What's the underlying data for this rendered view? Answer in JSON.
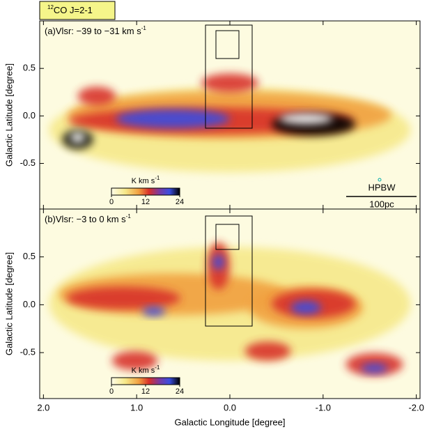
{
  "figure_label": {
    "superscript": "12",
    "text": "CO J=2-1"
  },
  "chart_data": [
    {
      "type": "map",
      "title": "(a)Vlsr: −39 to −31 km s",
      "title_superscript": "-1",
      "ylabel": "Galactic Latitude [degree]",
      "xlim": [
        2.04,
        -2.04
      ],
      "ylim": [
        -0.98,
        1.0
      ],
      "yticks": [
        0.5,
        {
          "value": 0,
          "label": "0.0"
        },
        -0.5
      ],
      "colorbar": {
        "label": "K km s",
        "label_superscript": "-1",
        "lim": [
          0,
          24
        ],
        "ticks": [
          0,
          12,
          24
        ]
      },
      "beam_label": "HPBW",
      "scale_bar": "100pc"
    },
    {
      "type": "map",
      "title": "(b)Vlsr: −3 to 0 km s",
      "title_superscript": "-1",
      "ylabel": "Galactic Latitude [degree]",
      "xlabel": "Galactic Longitude [degree]",
      "xlim": [
        2.04,
        -2.04
      ],
      "ylim": [
        -0.98,
        1.0
      ],
      "xticks": [
        {
          "value": 2,
          "label": "2.0"
        },
        {
          "value": 1,
          "label": "1.0"
        },
        {
          "value": 0,
          "label": "0.0"
        },
        {
          "value": -1,
          "label": "-1.0"
        },
        {
          "value": -2,
          "label": "-2.0"
        }
      ],
      "yticks": [
        0.5,
        {
          "value": 0,
          "label": "0.0"
        },
        -0.5
      ],
      "colorbar": {
        "label": "K km s",
        "label_superscript": "-1",
        "lim": [
          0,
          24
        ],
        "ticks": [
          0,
          12,
          24
        ]
      }
    }
  ]
}
